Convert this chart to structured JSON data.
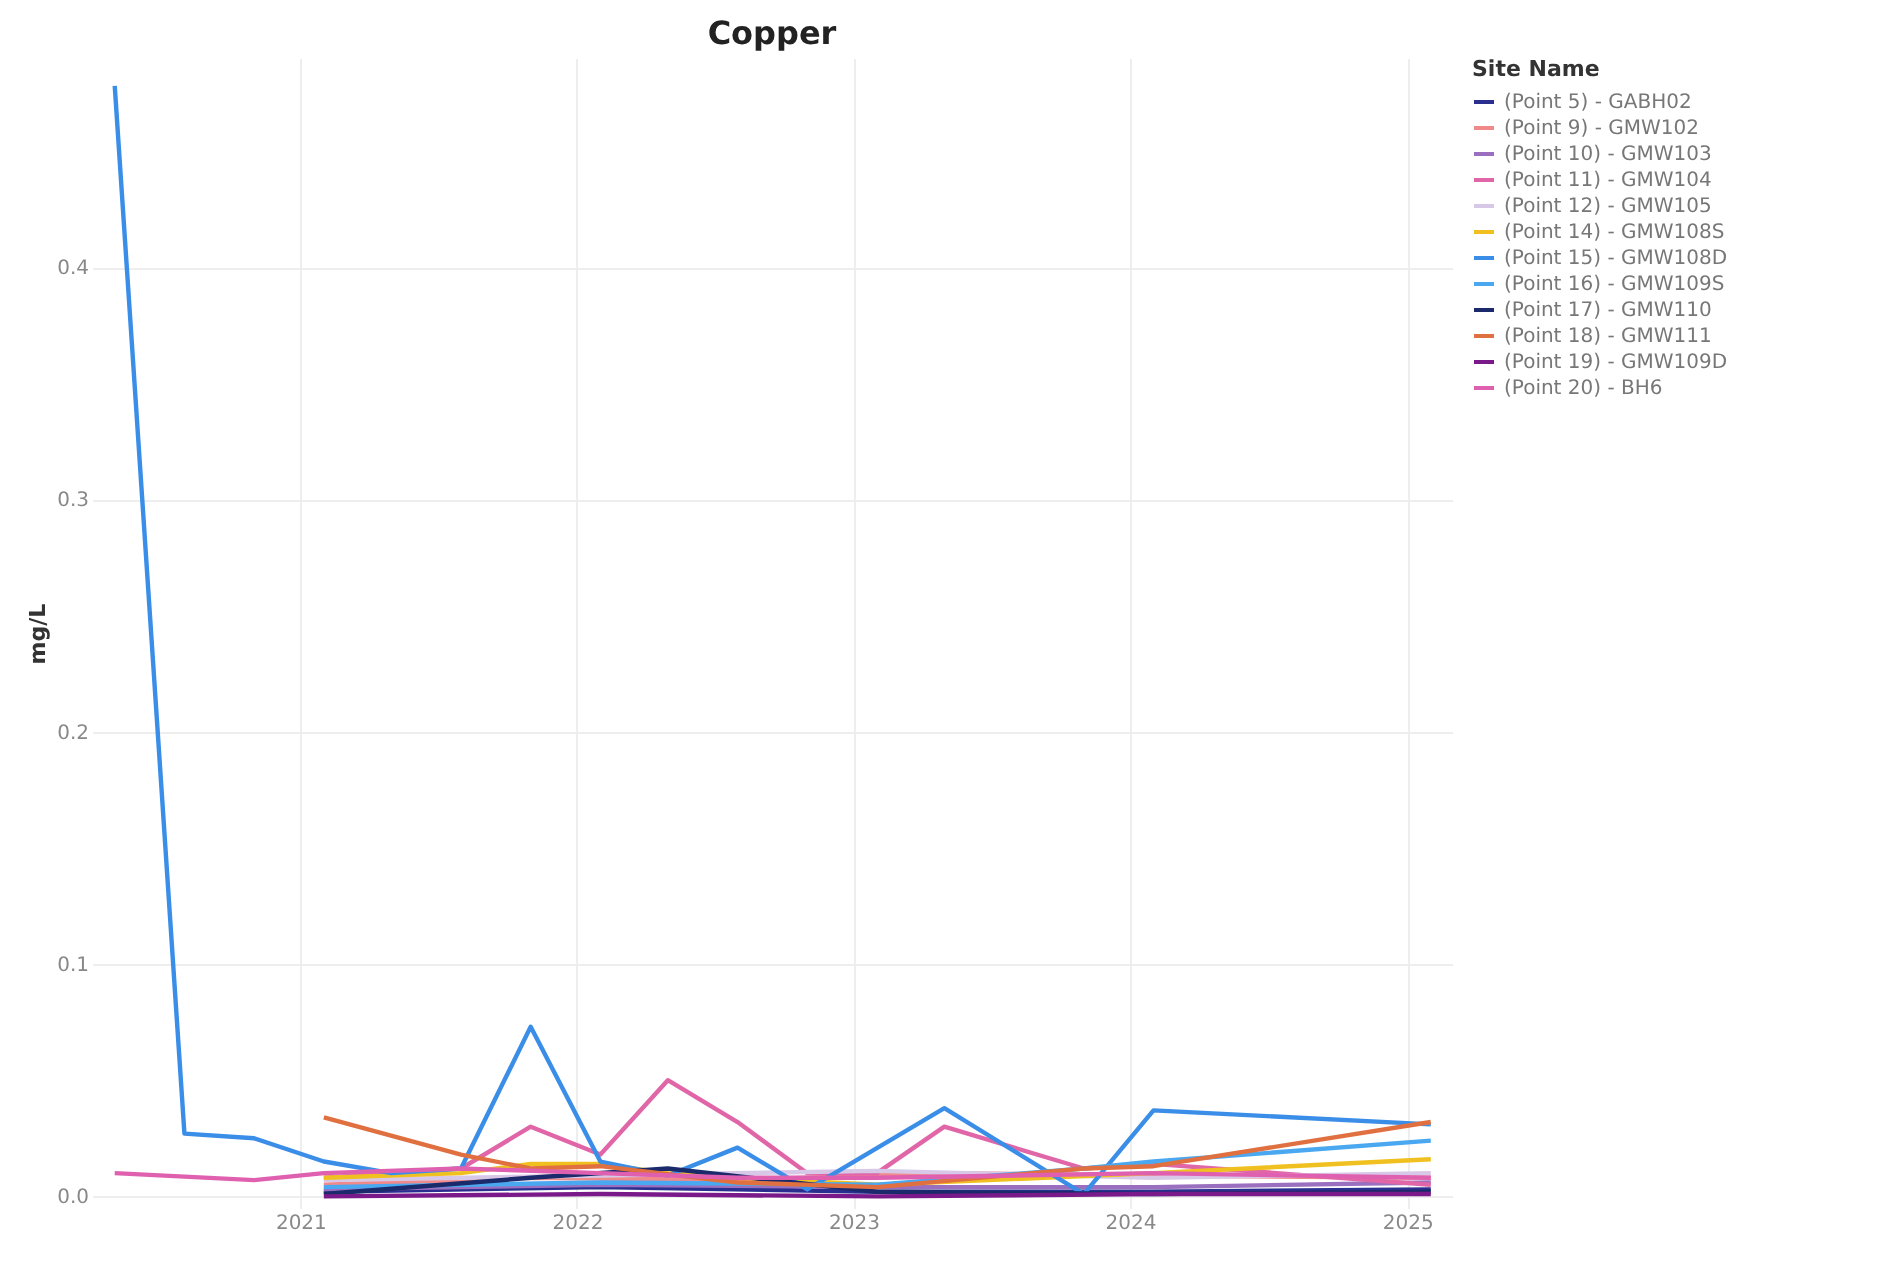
{
  "chart_data": {
    "type": "line",
    "title": "Copper",
    "ylabel": "mg/L",
    "legend_title": "Site Name",
    "legend": "right",
    "grid": true,
    "xlim": [
      "2020-04",
      "2025-03"
    ],
    "xticks": [
      "2021",
      "2022",
      "2023",
      "2024",
      "2025"
    ],
    "ylim": [
      -0.005,
      0.49
    ],
    "yticks": [
      {
        "value": 0,
        "label": "0.0"
      },
      0.1,
      0.2,
      0.3,
      0.4
    ],
    "series": [
      {
        "name": "(Point 5) - GABH02",
        "color": "#2a2f8f",
        "x": [
          "2021-02",
          "2022-02",
          "2023-02",
          "2024-02",
          "2025-02"
        ],
        "values": [
          0.002,
          0.004,
          0.002,
          0.002,
          0.003
        ]
      },
      {
        "name": "(Point 9) - GMW102",
        "color": "#f08a8a",
        "x": [
          "2021-02",
          "2021-11",
          "2022-08",
          "2023-05",
          "2024-02",
          "2025-02"
        ],
        "values": [
          0.005,
          0.008,
          0.007,
          0.01,
          0.009,
          0.008
        ]
      },
      {
        "name": "(Point 10) - GMW103",
        "color": "#9b6fbf",
        "x": [
          "2021-02",
          "2022-02",
          "2023-02",
          "2024-02",
          "2025-02"
        ],
        "values": [
          0.003,
          0.005,
          0.004,
          0.004,
          0.006
        ]
      },
      {
        "name": "(Point 11) - GMW104",
        "color": "#e066a8",
        "x": [
          "2021-02",
          "2021-05",
          "2021-08",
          "2021-11",
          "2022-02",
          "2022-05",
          "2022-08",
          "2022-11",
          "2023-02",
          "2023-05",
          "2023-11",
          "2024-02",
          "2025-02"
        ],
        "values": [
          0.008,
          0.01,
          0.012,
          0.03,
          0.018,
          0.05,
          0.032,
          0.01,
          0.01,
          0.03,
          0.012,
          0.014,
          0.005
        ]
      },
      {
        "name": "(Point 12) - GMW105",
        "color": "#d8c8e8",
        "x": [
          "2021-02",
          "2022-02",
          "2023-02",
          "2024-02",
          "2025-02"
        ],
        "values": [
          0.007,
          0.009,
          0.011,
          0.008,
          0.01
        ]
      },
      {
        "name": "(Point 14) - GMW108S",
        "color": "#f0c020",
        "x": [
          "2021-02",
          "2021-08",
          "2021-11",
          "2022-02",
          "2022-05",
          "2022-08",
          "2023-02",
          "2024-02",
          "2025-02"
        ],
        "values": [
          0.008,
          0.01,
          0.014,
          0.014,
          0.01,
          0.008,
          0.005,
          0.01,
          0.016
        ]
      },
      {
        "name": "(Point 15) - GMW108D",
        "color": "#3a8ee8",
        "x": [
          "2020-05",
          "2020-08",
          "2020-11",
          "2021-02",
          "2021-05",
          "2021-08",
          "2021-11",
          "2022-02",
          "2022-05",
          "2022-08",
          "2022-11",
          "2023-05",
          "2023-11",
          "2024-02",
          "2025-02"
        ],
        "values": [
          0.478,
          0.027,
          0.025,
          0.015,
          0.01,
          0.012,
          0.073,
          0.015,
          0.009,
          0.021,
          0.003,
          0.038,
          0.001,
          0.037,
          0.031
        ]
      },
      {
        "name": "(Point 16) - GMW109S",
        "color": "#4aa8f0",
        "x": [
          "2021-02",
          "2022-02",
          "2023-02",
          "2023-11",
          "2024-02",
          "2025-02"
        ],
        "values": [
          0.004,
          0.006,
          0.005,
          0.012,
          0.015,
          0.024
        ]
      },
      {
        "name": "(Point 17) - GMW110",
        "color": "#1a2a6a",
        "x": [
          "2021-02",
          "2021-11",
          "2022-05",
          "2023-02",
          "2024-02",
          "2025-02"
        ],
        "values": [
          0.001,
          0.008,
          0.012,
          0.002,
          0.001,
          0.002
        ]
      },
      {
        "name": "(Point 18) - GMW111",
        "color": "#e07040",
        "x": [
          "2021-02",
          "2021-08",
          "2021-11",
          "2022-02",
          "2022-08",
          "2023-02",
          "2023-11",
          "2024-02",
          "2025-02"
        ],
        "values": [
          0.034,
          0.018,
          0.012,
          0.013,
          0.006,
          0.004,
          0.012,
          0.013,
          0.032
        ]
      },
      {
        "name": "(Point 19) - GMW109D",
        "color": "#7a1a8a",
        "x": [
          "2021-02",
          "2022-02",
          "2023-02",
          "2024-02",
          "2025-02"
        ],
        "values": [
          0.0,
          0.001,
          0.0,
          0.001,
          0.001
        ]
      },
      {
        "name": "(Point 20) - BH6",
        "color": "#e060b0",
        "x": [
          "2020-05",
          "2020-11",
          "2021-02",
          "2021-08",
          "2022-02",
          "2022-08",
          "2023-02",
          "2024-02",
          "2025-02"
        ],
        "values": [
          0.01,
          0.007,
          0.01,
          0.012,
          0.01,
          0.008,
          0.008,
          0.01,
          0.008
        ]
      }
    ]
  }
}
